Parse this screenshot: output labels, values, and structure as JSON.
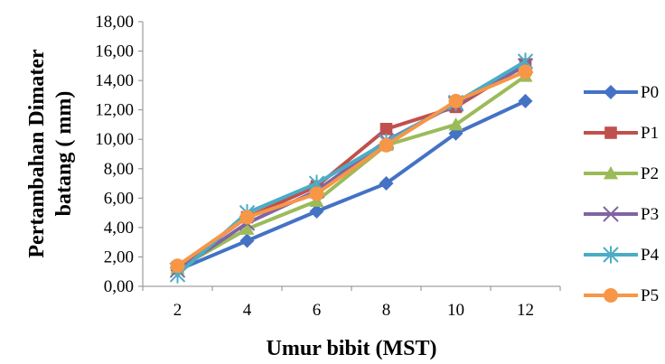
{
  "chart_data": {
    "type": "line",
    "xlabel": "Umur bibit (MST)",
    "ylabel_lines": [
      "Pertambahan Dimater",
      "batang ( mm)"
    ],
    "x": [
      "2",
      "4",
      "6",
      "8",
      "10",
      "12"
    ],
    "ylim": [
      0,
      18
    ],
    "yticks": [
      "0,00",
      "2,00",
      "4,00",
      "6,00",
      "8,00",
      "10,00",
      "12,00",
      "14,00",
      "16,00",
      "18,00"
    ],
    "grid": false,
    "legend_position": "right",
    "series": [
      {
        "name": "P0",
        "color": "#4472C4",
        "marker": "diamond",
        "values": [
          1.1,
          3.1,
          5.1,
          7.0,
          10.4,
          12.6
        ]
      },
      {
        "name": "P1",
        "color": "#C0504D",
        "marker": "square",
        "values": [
          1.3,
          4.7,
          6.8,
          10.7,
          12.2,
          15.1
        ]
      },
      {
        "name": "P2",
        "color": "#9BBB59",
        "marker": "triangle",
        "values": [
          1.2,
          3.9,
          5.8,
          9.6,
          11.0,
          14.3
        ]
      },
      {
        "name": "P3",
        "color": "#8064A2",
        "marker": "x",
        "values": [
          1.1,
          4.3,
          6.5,
          9.9,
          12.4,
          15.0
        ]
      },
      {
        "name": "P4",
        "color": "#4BACC6",
        "marker": "star",
        "values": [
          0.8,
          5.0,
          7.0,
          9.8,
          12.5,
          15.3
        ]
      },
      {
        "name": "P5",
        "color": "#F79646",
        "marker": "circle",
        "values": [
          1.4,
          4.7,
          6.3,
          9.6,
          12.6,
          14.6
        ]
      }
    ]
  }
}
